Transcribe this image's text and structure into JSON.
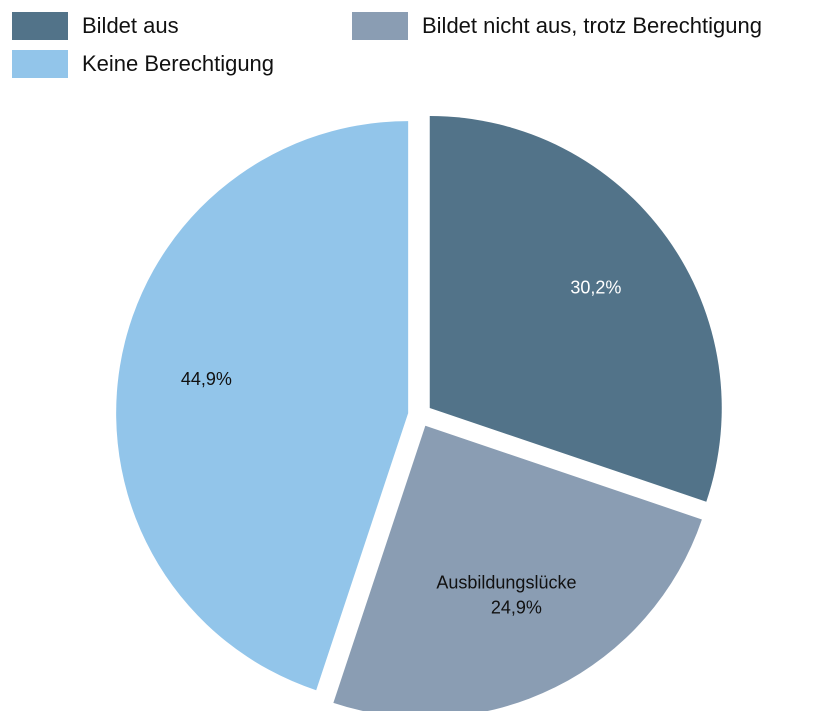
{
  "chart_data": {
    "type": "pie",
    "categories": [
      "Bildet aus",
      "Bildet nicht aus, trotz Berechtigung",
      "Keine Berechtigung"
    ],
    "values": [
      30.2,
      24.9,
      44.9
    ],
    "value_labels": [
      "30,2%",
      "24,9%",
      "44,9%"
    ],
    "colors": [
      "#527389",
      "#8a9db3",
      "#92c5ea"
    ],
    "annotation": "Ausbildungslücke",
    "legend": "top"
  }
}
